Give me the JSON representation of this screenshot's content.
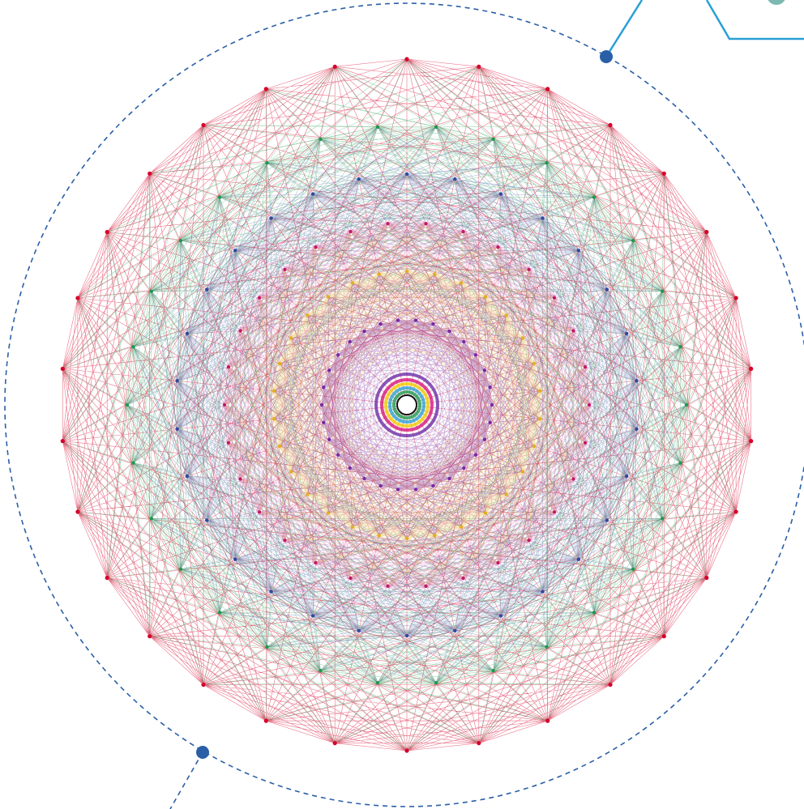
{
  "diagram": {
    "rings": [
      {
        "name": "outer",
        "vertices": 30,
        "color": "#d7002a",
        "opacity": 0.55,
        "connect": "all"
      },
      {
        "name": "second",
        "vertices": 30,
        "color": "#1c9a4c",
        "opacity": 0.4,
        "connect": "neighbors"
      },
      {
        "name": "third",
        "vertices": 30,
        "color": "#2f4aa0",
        "opacity": 0.35,
        "connect": "neighbors"
      },
      {
        "name": "fourth",
        "vertices": 30,
        "color": "#c01a6a",
        "opacity": 0.35,
        "connect": "neighbors"
      },
      {
        "name": "fifth",
        "vertices": 30,
        "color": "#e0b020",
        "opacity": 0.35,
        "connect": "neighbors"
      },
      {
        "name": "inner",
        "vertices": 30,
        "color": "#7a2aa0",
        "opacity": 0.4,
        "connect": "neighbors"
      }
    ],
    "center_ring_colors": [
      "#6c2aa6",
      "#d4147a",
      "#f0c800",
      "#2aa0d0",
      "#1c9a4c"
    ],
    "dashed_circle_color": "#2a5fa8",
    "connector_color": "#2aa0d6",
    "marker_color": "#2a5fa8"
  }
}
